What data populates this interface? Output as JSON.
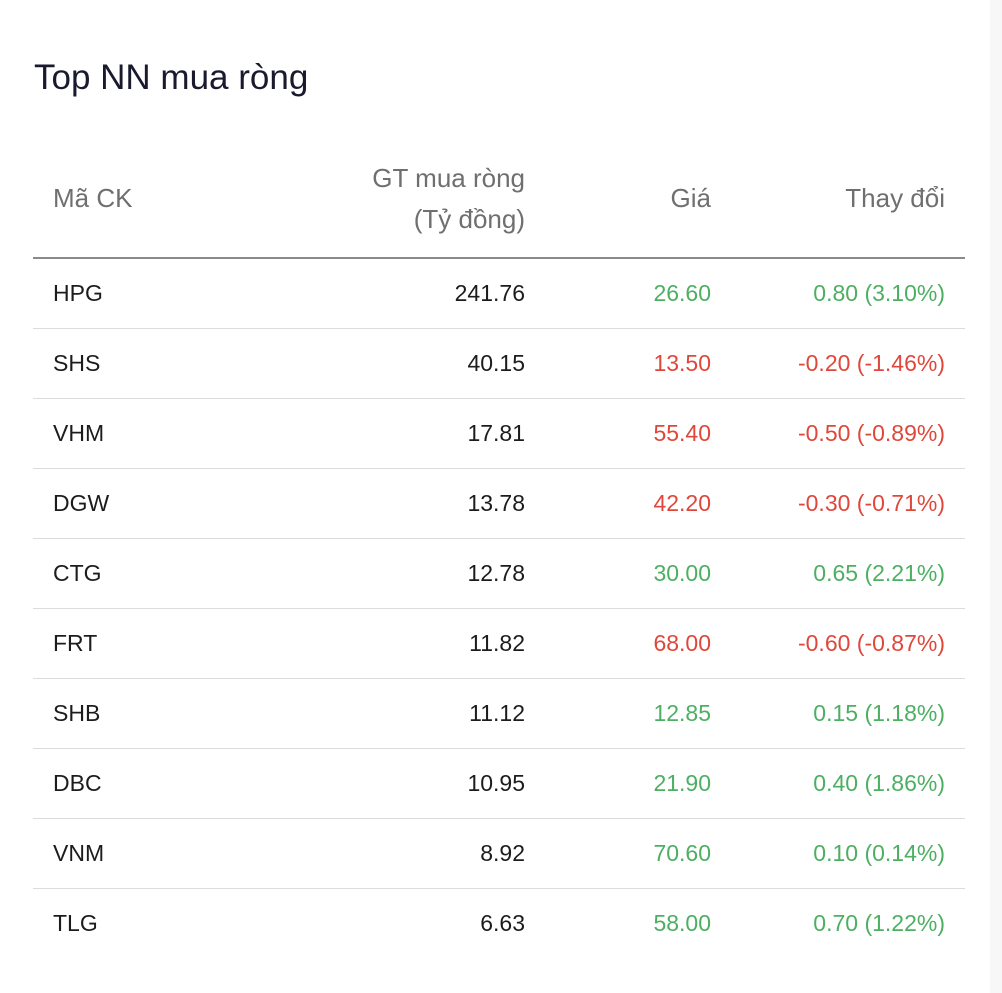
{
  "title": "Top NN mua ròng",
  "table": {
    "headers": {
      "symbol": "Mã CK",
      "value_line1": "GT mua ròng",
      "value_line2": "(Tỷ đồng)",
      "price": "Giá",
      "change": "Thay đổi"
    },
    "rows": [
      {
        "symbol": "HPG",
        "value": "241.76",
        "price": "26.60",
        "change": "0.80 (3.10%)",
        "trend": "up"
      },
      {
        "symbol": "SHS",
        "value": "40.15",
        "price": "13.50",
        "change": "-0.20 (-1.46%)",
        "trend": "down"
      },
      {
        "symbol": "VHM",
        "value": "17.81",
        "price": "55.40",
        "change": "-0.50 (-0.89%)",
        "trend": "down"
      },
      {
        "symbol": "DGW",
        "value": "13.78",
        "price": "42.20",
        "change": "-0.30 (-0.71%)",
        "trend": "down"
      },
      {
        "symbol": "CTG",
        "value": "12.78",
        "price": "30.00",
        "change": "0.65 (2.21%)",
        "trend": "up"
      },
      {
        "symbol": "FRT",
        "value": "11.82",
        "price": "68.00",
        "change": "-0.60 (-0.87%)",
        "trend": "down"
      },
      {
        "symbol": "SHB",
        "value": "11.12",
        "price": "12.85",
        "change": "0.15 (1.18%)",
        "trend": "up"
      },
      {
        "symbol": "DBC",
        "value": "10.95",
        "price": "21.90",
        "change": "0.40 (1.86%)",
        "trend": "up"
      },
      {
        "symbol": "VNM",
        "value": "8.92",
        "price": "70.60",
        "change": "0.10 (0.14%)",
        "trend": "up"
      },
      {
        "symbol": "TLG",
        "value": "6.63",
        "price": "58.00",
        "change": "0.70 (1.22%)",
        "trend": "up"
      }
    ]
  },
  "colors": {
    "up": "#4caf62",
    "down": "#e0473b",
    "text": "#1c1c1c",
    "header": "#6f6f6f"
  }
}
